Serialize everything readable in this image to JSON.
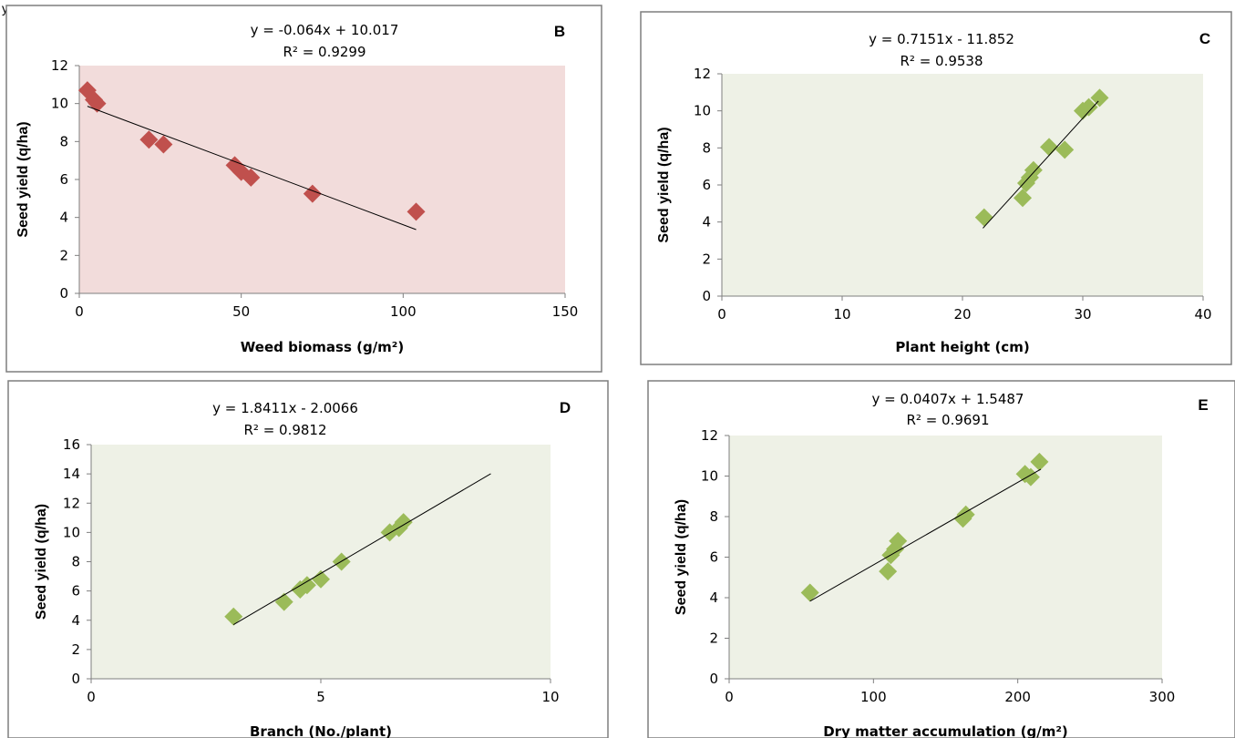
{
  "fragment_text": "y,",
  "chart_data": [
    {
      "type": "scatter",
      "letter": "B",
      "equation": "y = -0.064x + 10.017",
      "r2": "R² = 0.9299",
      "xlabel": "Weed biomass (g/m²)",
      "ylabel": "Seed yield (q/ha)",
      "xlim": [
        0,
        150
      ],
      "ylim": [
        0,
        12
      ],
      "xticks": [
        0,
        50,
        100,
        150
      ],
      "yticks": [
        0,
        2,
        4,
        6,
        8,
        10,
        12
      ],
      "plot_bg": "#f2dcdb",
      "marker_color": "#c0504d",
      "points": [
        [
          2.5,
          10.7
        ],
        [
          4.5,
          10.2
        ],
        [
          5.5,
          10.0
        ],
        [
          21.5,
          8.1
        ],
        [
          26,
          7.85
        ],
        [
          48,
          6.75
        ],
        [
          50,
          6.4
        ],
        [
          53,
          6.1
        ],
        [
          72,
          5.25
        ],
        [
          104,
          4.3
        ]
      ],
      "trendline": {
        "x": [
          2.5,
          104
        ],
        "slope": -0.064,
        "intercept": 10.017
      }
    },
    {
      "type": "scatter",
      "letter": "C",
      "equation": "y = 0.7151x - 11.852",
      "r2": "R² = 0.9538",
      "xlabel": "Plant height (cm)",
      "ylabel": "Seed yield (q/ha)",
      "xlim": [
        0,
        40
      ],
      "ylim": [
        0,
        12
      ],
      "xticks": [
        0,
        10,
        20,
        30,
        40
      ],
      "yticks": [
        0,
        2,
        4,
        6,
        8,
        10,
        12
      ],
      "plot_bg": "#eef1e6",
      "marker_color": "#9bbb59",
      "points": [
        [
          21.8,
          4.25
        ],
        [
          25,
          5.3
        ],
        [
          25.3,
          6.1
        ],
        [
          25.6,
          6.4
        ],
        [
          25.9,
          6.8
        ],
        [
          27.2,
          8.05
        ],
        [
          28.5,
          7.9
        ],
        [
          30,
          10.0
        ],
        [
          30.5,
          10.2
        ],
        [
          31.4,
          10.7
        ]
      ],
      "trendline": {
        "x": [
          21.7,
          31.3
        ],
        "slope": 0.7151,
        "intercept": -11.852
      }
    },
    {
      "type": "scatter",
      "letter": "D",
      "equation": "y = 1.8411x - 2.0066",
      "r2": "R² = 0.9812",
      "xlabel": "Branch (No./plant)",
      "ylabel": "Seed yield (q/ha)",
      "xlim": [
        0,
        10
      ],
      "ylim": [
        0,
        16
      ],
      "xticks": [
        0,
        5,
        10
      ],
      "yticks": [
        0,
        2,
        4,
        6,
        8,
        10,
        12,
        14,
        16
      ],
      "plot_bg": "#eef1e6",
      "marker_color": "#9bbb59",
      "points": [
        [
          3.1,
          4.25
        ],
        [
          4.2,
          5.25
        ],
        [
          4.55,
          6.1
        ],
        [
          4.7,
          6.4
        ],
        [
          5.0,
          6.8
        ],
        [
          5.45,
          8.0
        ],
        [
          6.5,
          10.0
        ],
        [
          6.7,
          10.3
        ],
        [
          6.8,
          10.7
        ]
      ],
      "trendline": {
        "x": [
          3.1,
          8.7
        ],
        "slope": 1.8411,
        "intercept": -2.0066
      }
    },
    {
      "type": "scatter",
      "letter": "E",
      "equation": "y = 0.0407x + 1.5487",
      "r2": "R² = 0.9691",
      "xlabel": "Dry matter accumulation (g/m²)",
      "ylabel": "Seed yield (q/ha)",
      "xlim": [
        0,
        300
      ],
      "ylim": [
        0,
        12
      ],
      "xticks": [
        0,
        100,
        200,
        300
      ],
      "yticks": [
        0,
        2,
        4,
        6,
        8,
        10,
        12
      ],
      "plot_bg": "#eef1e6",
      "marker_color": "#9bbb59",
      "points": [
        [
          56,
          4.25
        ],
        [
          110,
          5.3
        ],
        [
          112,
          6.1
        ],
        [
          115,
          6.4
        ],
        [
          117,
          6.8
        ],
        [
          162,
          7.9
        ],
        [
          164,
          8.1
        ],
        [
          205,
          10.1
        ],
        [
          209,
          9.95
        ],
        [
          215,
          10.7
        ]
      ],
      "trendline": {
        "x": [
          56,
          216
        ],
        "slope": 0.0407,
        "intercept": 1.5487
      }
    }
  ]
}
